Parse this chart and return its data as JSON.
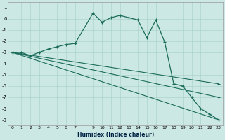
{
  "xlabel": "Humidex (Indice chaleur)",
  "background_color": "#cce8e4",
  "grid_color": "#aad4cc",
  "line_color": "#1a6b5a",
  "xlim": [
    -0.5,
    23.5
  ],
  "ylim": [
    -9.5,
    1.5
  ],
  "yticks": [
    1,
    0,
    -1,
    -2,
    -3,
    -4,
    -5,
    -6,
    -7,
    -8,
    -9
  ],
  "xticks": [
    0,
    1,
    2,
    3,
    4,
    5,
    6,
    7,
    9,
    10,
    11,
    12,
    13,
    14,
    15,
    16,
    17,
    18,
    19,
    20,
    21,
    22,
    23
  ],
  "line1_x": [
    0,
    1,
    2,
    3,
    4,
    5,
    6,
    7,
    9,
    10,
    11,
    12,
    13,
    14,
    15,
    16,
    17,
    18,
    19,
    20,
    21,
    22,
    23
  ],
  "line1_y": [
    -3,
    -3,
    -3.3,
    -3.0,
    -2.7,
    -2.5,
    -2.3,
    -2.2,
    0.5,
    -0.3,
    0.1,
    0.3,
    0.1,
    -0.1,
    -1.7,
    -0.1,
    -2.1,
    -5.8,
    -6.0,
    -7.0,
    -8.0,
    -8.5,
    -9.0
  ],
  "line2_x": [
    0,
    23
  ],
  "line2_y": [
    -3,
    -5.8
  ],
  "line3_x": [
    0,
    23
  ],
  "line3_y": [
    -3,
    -7.0
  ],
  "line4_x": [
    0,
    23
  ],
  "line4_y": [
    -3,
    -9.0
  ]
}
